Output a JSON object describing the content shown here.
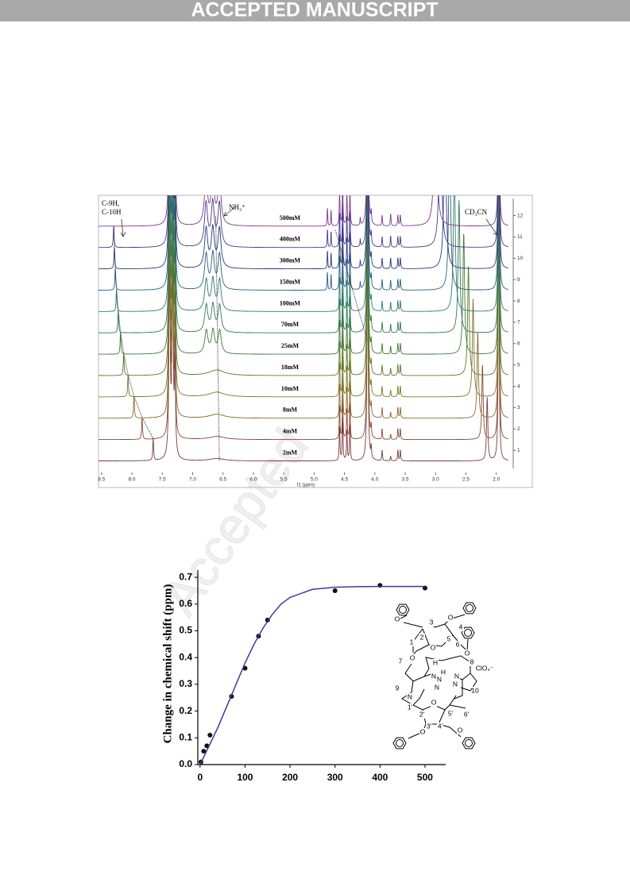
{
  "header": {
    "banner": "ACCEPTED MANUSCRIPT"
  },
  "watermark": "Accepted",
  "chart_data": [
    {
      "type": "nmr",
      "xlabel": "f1 (ppm)",
      "xlim": [
        8.55,
        1.8
      ],
      "xticks": [
        8.5,
        {
          "value": 8,
          "label": "8.0"
        },
        7.5,
        {
          "value": 7,
          "label": "7.0"
        },
        6.5,
        {
          "value": 6,
          "label": "6.0"
        },
        5.5,
        {
          "value": 5,
          "label": "5.0"
        },
        4.5,
        {
          "value": 4,
          "label": "4.0"
        },
        3.5,
        {
          "value": 3,
          "label": "3.0"
        },
        2.5,
        {
          "value": 2,
          "label": "2.0"
        }
      ],
      "ylim": [
        0.15,
        12.95
      ],
      "yticks": [
        1,
        2,
        3,
        4,
        5,
        6,
        7,
        8,
        9,
        10,
        11,
        12
      ],
      "annotations": [
        "C-9H,",
        "C-10H",
        "NH₃⁺",
        "CD₃CN"
      ],
      "spectra": [
        {
          "name": "2mM",
          "color": "#7a3b3b"
        },
        {
          "name": "4mM",
          "color": "#874a36"
        },
        {
          "name": "8mM",
          "color": "#8a6a30"
        },
        {
          "name": "10mM",
          "color": "#7a7a2a"
        },
        {
          "name": "18mM",
          "color": "#5e7a2a"
        },
        {
          "name": "25mM",
          "color": "#3f7a3a"
        },
        {
          "name": "70mM",
          "color": "#2f7a55"
        },
        {
          "name": "100mM",
          "color": "#2f7a70"
        },
        {
          "name": "150mM",
          "color": "#2a5f82"
        },
        {
          "name": "300mM",
          "color": "#2a3a7a"
        },
        {
          "name": "400mM",
          "color": "#4a3a8a"
        },
        {
          "name": "500mM",
          "color": "#7a3a8a"
        }
      ]
    },
    {
      "type": "scatter",
      "ylabel": "Change in chemical shift (ppm)",
      "xlim": [
        -5,
        546
      ],
      "xticks": [
        0,
        100,
        200,
        300,
        400,
        500
      ],
      "ylim": [
        0,
        0.727
      ],
      "yticks": [
        {
          "value": 0,
          "label": "0.0"
        },
        0.1,
        0.2,
        0.3,
        0.4,
        0.5,
        0.6,
        0.7
      ],
      "series": [
        {
          "style": "markers",
          "color": "#111111",
          "x": [
            2,
            8,
            15,
            22,
            70,
            100,
            130,
            150,
            300,
            400,
            500
          ],
          "values": [
            0.01,
            0.05,
            0.07,
            0.11,
            0.255,
            0.36,
            0.48,
            0.54,
            0.65,
            0.67,
            0.66
          ]
        },
        {
          "style": "line",
          "color": "#3a3aa0",
          "x": [
            0,
            10,
            20,
            30,
            40,
            50,
            60,
            70,
            80,
            90,
            100,
            120,
            140,
            160,
            180,
            200,
            250,
            300,
            350,
            400,
            450,
            500
          ],
          "values": [
            0,
            0.035,
            0.07,
            0.105,
            0.14,
            0.18,
            0.22,
            0.26,
            0.3,
            0.34,
            0.38,
            0.45,
            0.51,
            0.56,
            0.6,
            0.625,
            0.655,
            0.663,
            0.665,
            0.666,
            0.666,
            0.666
          ]
        }
      ]
    }
  ],
  "structure": {
    "labels": [
      "O",
      "O",
      "3",
      "4",
      "2",
      "5",
      "O",
      "1",
      "6",
      "O",
      "7",
      "O",
      "8",
      "ClO₄⁻",
      "H",
      "H",
      "N",
      "N",
      "N",
      "N",
      "N",
      "9",
      "N",
      "10",
      "1'",
      "2'",
      "5'",
      "6'",
      "O",
      "3'",
      "4'",
      "O",
      "O"
    ]
  }
}
